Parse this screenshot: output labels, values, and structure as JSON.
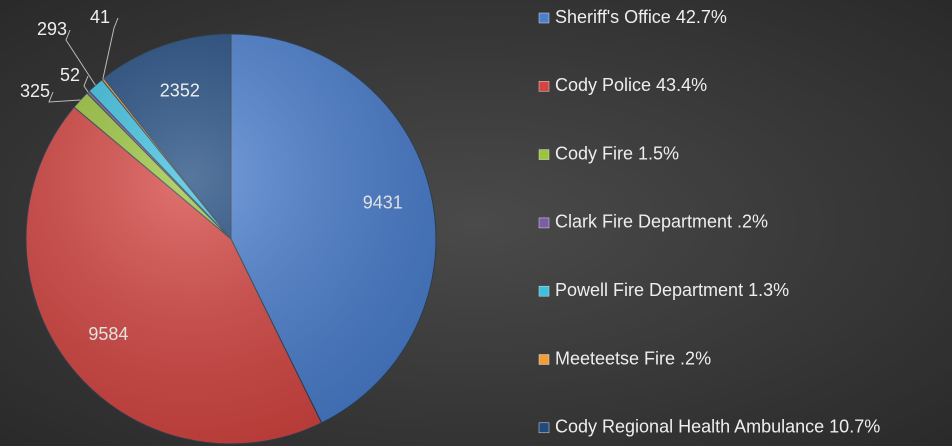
{
  "chart_data": {
    "type": "pie",
    "categories": [
      "Sheriff's Office 42.7%",
      "Cody Police 43.4%",
      "Cody Fire 1.5%",
      "Clark Fire Department .2%",
      "Powell Fire Department 1.3%",
      "Meeteetse Fire .2%",
      "Cody Regional Health Ambulance 10.7%"
    ],
    "values": [
      9431,
      9584,
      325,
      52,
      293,
      41,
      2352
    ],
    "colors": [
      "#4a7fd0",
      "#d64541",
      "#9bc53d",
      "#7d5ba6",
      "#3cc0e0",
      "#f39c3a",
      "#1f4a7f"
    ],
    "legend": "right"
  }
}
